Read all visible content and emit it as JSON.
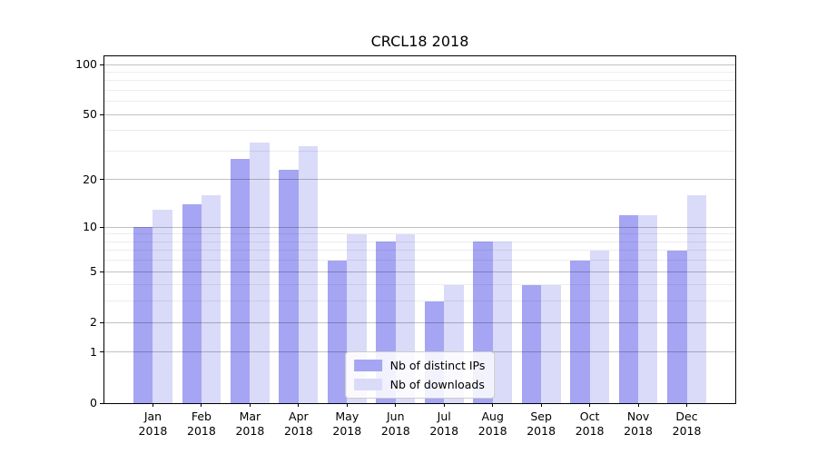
{
  "chart_data": {
    "type": "bar",
    "title": "CRCL18 2018",
    "categories": [
      "Jan 2018",
      "Feb 2018",
      "Mar 2018",
      "Apr 2018",
      "May 2018",
      "Jun 2018",
      "Jul 2018",
      "Aug 2018",
      "Sep 2018",
      "Oct 2018",
      "Nov 2018",
      "Dec 2018"
    ],
    "series": [
      {
        "name": "Nb of distinct IPs",
        "color": "#a5a5f3",
        "values": [
          10,
          14,
          27,
          23,
          6,
          8,
          3,
          8,
          4,
          6,
          12,
          7
        ]
      },
      {
        "name": "Nb of downloads",
        "color": "#dadaf9",
        "values": [
          13,
          16,
          34,
          32,
          9,
          9,
          4,
          8,
          4,
          7,
          12,
          16
        ]
      }
    ],
    "xlabel": "",
    "ylabel": "",
    "y_scale": "log1p",
    "y_ticks": [
      0,
      1,
      2,
      5,
      10,
      20,
      50,
      100
    ],
    "y_minor_ticks": [
      3,
      4,
      6,
      7,
      8,
      9,
      30,
      40,
      60,
      70,
      80,
      90
    ],
    "ylim": [
      0,
      112
    ],
    "grid": "on",
    "legend_position": "lower center"
  },
  "colors": {
    "bar_dark": "#a5a5f3",
    "bar_light": "#dadaf9",
    "major_grid": "rgba(0,0,0,0.24)",
    "minor_grid": "rgba(0,0,0,0.07)",
    "spine": "#000000",
    "text": "#000000"
  }
}
